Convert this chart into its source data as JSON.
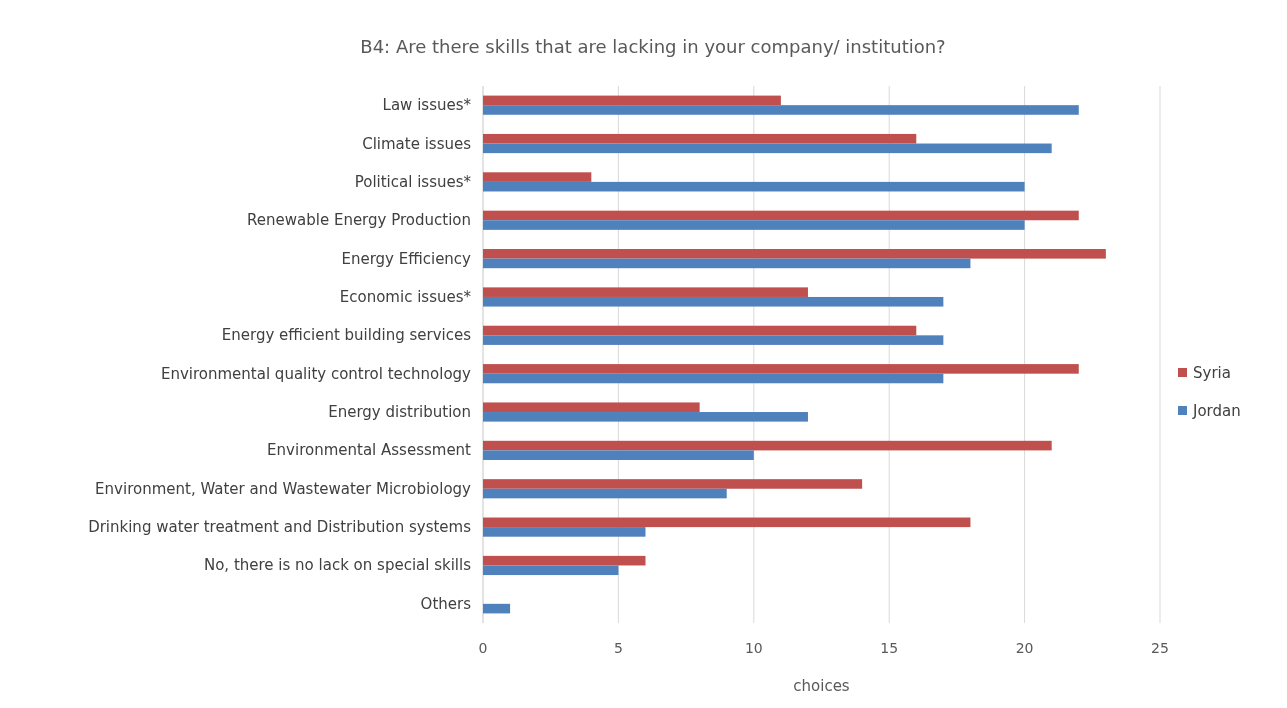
{
  "chart_data": {
    "type": "bar",
    "orientation": "horizontal",
    "title": "B4: Are there skills that are lacking in your company/ institution?",
    "xlabel": "choices",
    "categories": [
      "Law issues*",
      "Climate issues",
      "Political issues*",
      "Renewable Energy Production",
      "Energy Efficiency",
      "Economic issues*",
      "Energy efficient building services",
      "Environmental quality control technology",
      "Energy distribution",
      "Environmental Assessment",
      "Environment, Water and Wastewater Microbiology",
      "Drinking water treatment and Distribution systems",
      "No, there is no lack on special skills",
      "Others"
    ],
    "series": [
      {
        "name": "Syria",
        "color": "#c0504d",
        "values": [
          11,
          16,
          4,
          22,
          23,
          12,
          16,
          22,
          8,
          21,
          14,
          18,
          6,
          0
        ]
      },
      {
        "name": "Jordan",
        "color": "#4f81bd",
        "values": [
          22,
          21,
          20,
          20,
          18,
          17,
          17,
          17,
          12,
          10,
          9,
          6,
          5,
          1
        ]
      }
    ],
    "xlim": [
      0,
      25
    ],
    "xticks": [
      0,
      5,
      10,
      15,
      20,
      25
    ],
    "grid": "x",
    "legend": "right"
  }
}
